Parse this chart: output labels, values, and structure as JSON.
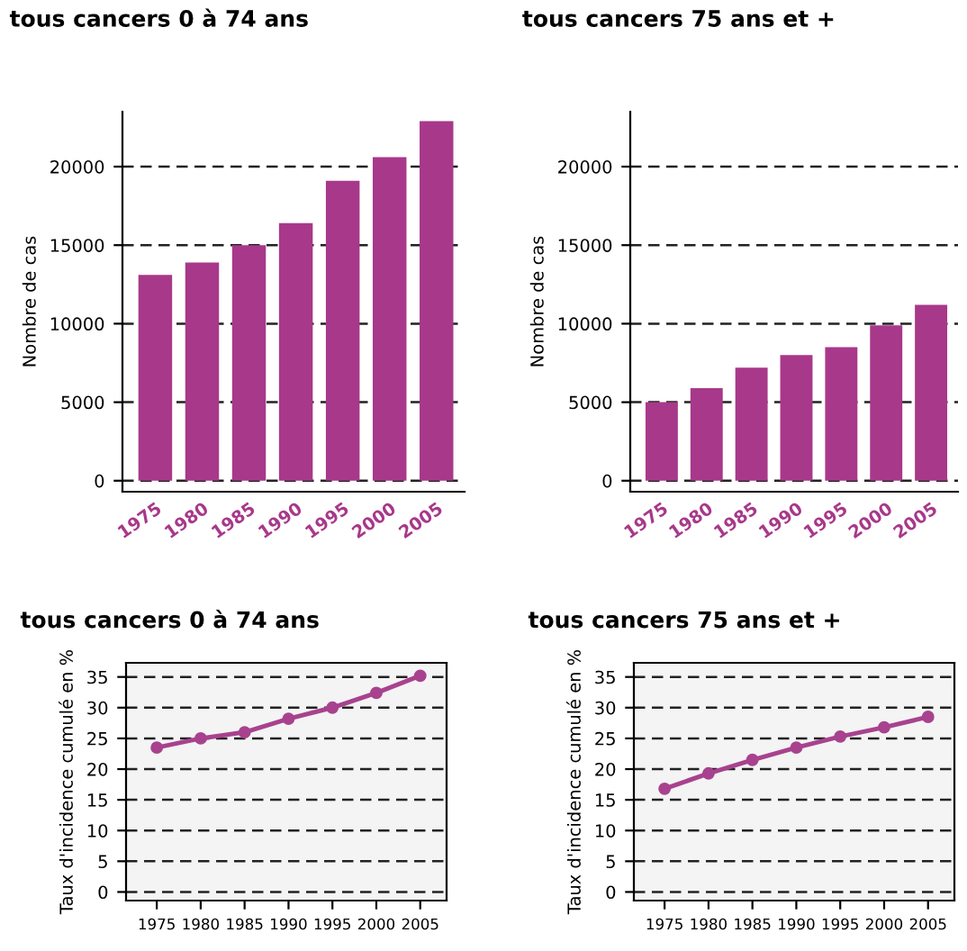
{
  "chart_data": [
    {
      "type": "bar",
      "title": "tous cancers 0 à 74 ans",
      "ylabel": "Nombre de cas",
      "categories": [
        "1975",
        "1980",
        "1985",
        "1990",
        "1995",
        "2000",
        "2005"
      ],
      "values": [
        13100,
        13900,
        15000,
        16400,
        19100,
        20600,
        22900
      ],
      "color": "#a8388a",
      "ylim": [
        -700,
        23500
      ],
      "yticks": [
        0,
        5000,
        10000,
        15000,
        20000
      ],
      "grid": "y"
    },
    {
      "type": "bar",
      "title": "tous cancers 75 ans et +",
      "ylabel": "Nombre de cas",
      "categories": [
        "1975",
        "1980",
        "1985",
        "1990",
        "1995",
        "2000",
        "2005"
      ],
      "values": [
        5000,
        5900,
        7200,
        8000,
        8500,
        9900,
        11200
      ],
      "color": "#a8388a",
      "ylim": [
        -700,
        23500
      ],
      "yticks": [
        0,
        5000,
        10000,
        15000,
        20000
      ],
      "grid": "y"
    },
    {
      "type": "line",
      "title": "tous cancers 0 à 74 ans",
      "ylabel": "Taux d'incidence cumulé en %",
      "categories": [
        "1975",
        "1980",
        "1985",
        "1990",
        "1995",
        "2000",
        "2005"
      ],
      "values": [
        23.5,
        25,
        26,
        28.2,
        30,
        32.4,
        35.2
      ],
      "color": "#a8428e",
      "marker": "circle",
      "ylim": [
        -1.4,
        37.3
      ],
      "yticks": [
        0,
        5,
        10,
        15,
        20,
        25,
        30,
        35
      ],
      "grid": "y"
    },
    {
      "type": "line",
      "title": "tous cancers 75 ans et +",
      "ylabel": "Taux d'incidence cumulé en %",
      "categories": [
        "1975",
        "1980",
        "1985",
        "1990",
        "1995",
        "2000",
        "2005"
      ],
      "values": [
        16.8,
        19.3,
        21.5,
        23.5,
        25.3,
        26.8,
        28.5
      ],
      "color": "#a8428e",
      "marker": "circle",
      "ylim": [
        -1.4,
        37.3
      ],
      "yticks": [
        0,
        5,
        10,
        15,
        20,
        25,
        30,
        35
      ],
      "grid": "y"
    }
  ]
}
